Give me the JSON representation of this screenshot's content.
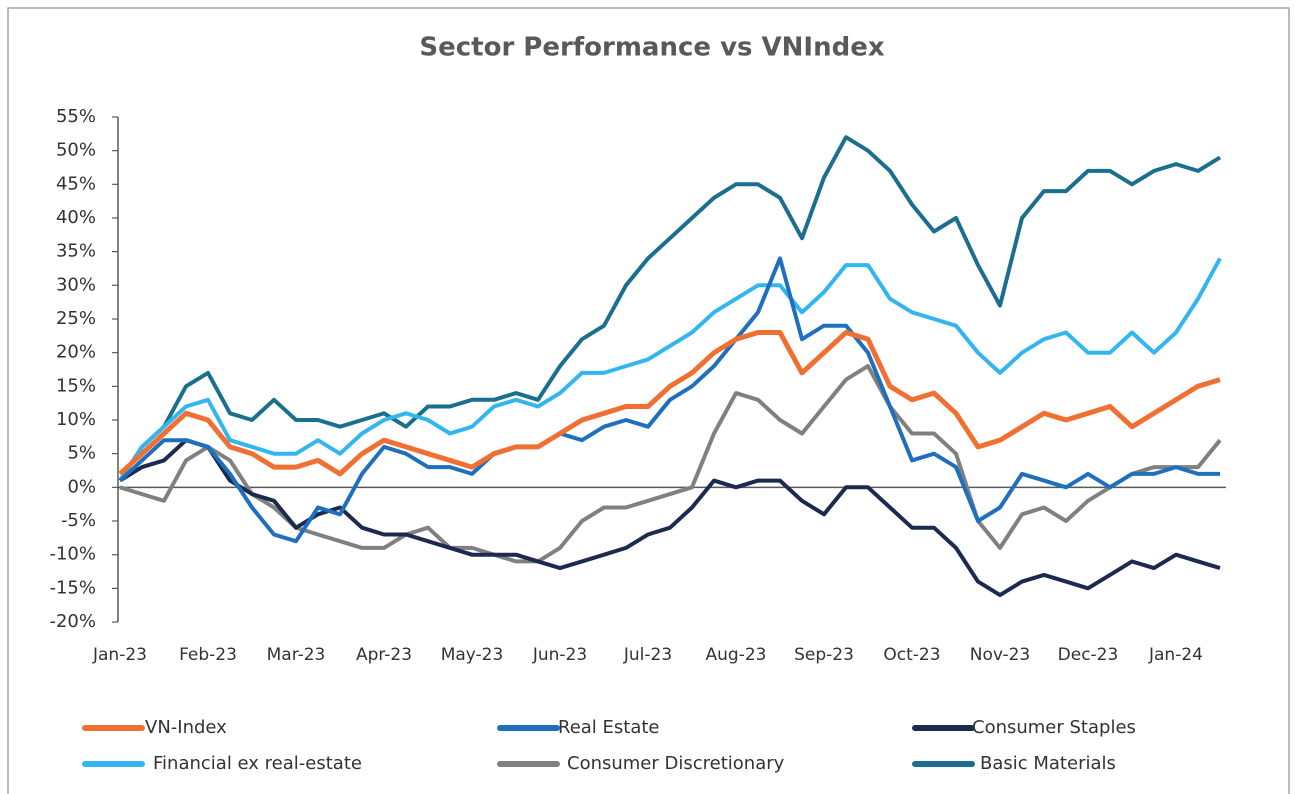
{
  "chart_data": {
    "type": "line",
    "title": "Sector Performance vs VNIndex",
    "categories": [
      "Jan-23",
      null,
      null,
      null,
      "Feb-23",
      null,
      null,
      null,
      "Mar-23",
      null,
      null,
      null,
      "Apr-23",
      null,
      null,
      null,
      "May-23",
      null,
      null,
      null,
      "Jun-23",
      null,
      null,
      null,
      "Jul-23",
      null,
      null,
      null,
      "Aug-23",
      null,
      null,
      null,
      "Sep-23",
      null,
      null,
      null,
      "Oct-23",
      null,
      null,
      null,
      "Nov-23",
      null,
      null,
      null,
      "Dec-23",
      null,
      null,
      null,
      "Jan-24",
      null,
      null
    ],
    "series": [
      {
        "name": "VN-Index",
        "color": "#f07033",
        "values": [
          2,
          5,
          8,
          11,
          10,
          6,
          5,
          3,
          3,
          4,
          2,
          5,
          7,
          6,
          5,
          4,
          3,
          5,
          6,
          6,
          8,
          10,
          11,
          12,
          12,
          15,
          17,
          20,
          22,
          23,
          23,
          17,
          20,
          23,
          22,
          15,
          13,
          14,
          11,
          6,
          7,
          9,
          11,
          10,
          11,
          12,
          9,
          11,
          13,
          15,
          16
        ]
      },
      {
        "name": "Real Estate",
        "color": "#1f6fbf",
        "values": [
          1,
          4,
          7,
          7,
          6,
          2,
          -3,
          -7,
          -8,
          -3,
          -4,
          2,
          6,
          5,
          3,
          3,
          2,
          5,
          6,
          6,
          8,
          7,
          9,
          10,
          9,
          13,
          15,
          18,
          22,
          26,
          34,
          22,
          24,
          24,
          20,
          12,
          4,
          5,
          3,
          -5,
          -3,
          2,
          1,
          0,
          2,
          0,
          2,
          2,
          3,
          2,
          2
        ]
      },
      {
        "name": "Consumer Staples",
        "color": "#1b2a4e",
        "values": [
          1,
          3,
          4,
          7,
          6,
          1,
          -1,
          -2,
          -6,
          -4,
          -3,
          -6,
          -7,
          -7,
          -8,
          -9,
          -10,
          -10,
          -10,
          -11,
          -12,
          -11,
          -10,
          -9,
          -7,
          -6,
          -3,
          1,
          0,
          1,
          1,
          -2,
          -4,
          0,
          0,
          -3,
          -6,
          -6,
          -9,
          -14,
          -16,
          -14,
          -13,
          -14,
          -15,
          -13,
          -11,
          -12,
          -10,
          -11,
          -12
        ]
      },
      {
        "name": "Financial ex real-estate",
        "color": "#33b5f0",
        "values": [
          1,
          6,
          9,
          12,
          13,
          7,
          6,
          5,
          5,
          7,
          5,
          8,
          10,
          11,
          10,
          8,
          9,
          12,
          13,
          12,
          14,
          17,
          17,
          18,
          19,
          21,
          23,
          26,
          28,
          30,
          30,
          26,
          29,
          33,
          33,
          28,
          26,
          25,
          24,
          20,
          17,
          20,
          22,
          23,
          20,
          20,
          23,
          20,
          23,
          28,
          34
        ]
      },
      {
        "name": "Consumer Discretionary",
        "color": "#808080",
        "values": [
          0,
          -1,
          -2,
          4,
          6,
          4,
          -1,
          -3,
          -6,
          -7,
          -8,
          -9,
          -9,
          -7,
          -6,
          -9,
          -9,
          -10,
          -11,
          -11,
          -9,
          -5,
          -3,
          -3,
          -2,
          -1,
          0,
          8,
          14,
          13,
          10,
          8,
          12,
          16,
          18,
          12,
          8,
          8,
          5,
          -5,
          -9,
          -4,
          -3,
          -5,
          -2,
          0,
          2,
          3,
          3,
          3,
          7
        ]
      },
      {
        "name": "Basic Materials",
        "color": "#1a6e8e",
        "values": [
          1,
          6,
          9,
          15,
          17,
          11,
          10,
          13,
          10,
          10,
          9,
          10,
          11,
          9,
          12,
          12,
          13,
          13,
          14,
          13,
          18,
          22,
          24,
          30,
          34,
          37,
          40,
          43,
          45,
          45,
          43,
          37,
          46,
          52,
          50,
          47,
          42,
          38,
          40,
          33,
          27,
          40,
          44,
          44,
          47,
          47,
          45,
          47,
          48,
          47,
          49
        ]
      }
    ],
    "ylim": [
      -20,
      55
    ],
    "yticks": [
      {
        "value": -20,
        "label": "-20%"
      },
      {
        "value": -15,
        "label": "-15%"
      },
      {
        "value": -10,
        "label": "-10%"
      },
      {
        "value": -5,
        "label": "-5%"
      },
      {
        "value": 0,
        "label": "0%"
      },
      {
        "value": 5,
        "label": "5%"
      },
      {
        "value": 10,
        "label": "10%"
      },
      {
        "value": 15,
        "label": "15%"
      },
      {
        "value": 20,
        "label": "20%"
      },
      {
        "value": 25,
        "label": "25%"
      },
      {
        "value": 30,
        "label": "30%"
      },
      {
        "value": 35,
        "label": "35%"
      },
      {
        "value": 40,
        "label": "40%"
      },
      {
        "value": 45,
        "label": "45%"
      },
      {
        "value": 50,
        "label": "50%"
      },
      {
        "value": 55,
        "label": "55%"
      }
    ],
    "grid": false,
    "legend": "bottom"
  }
}
